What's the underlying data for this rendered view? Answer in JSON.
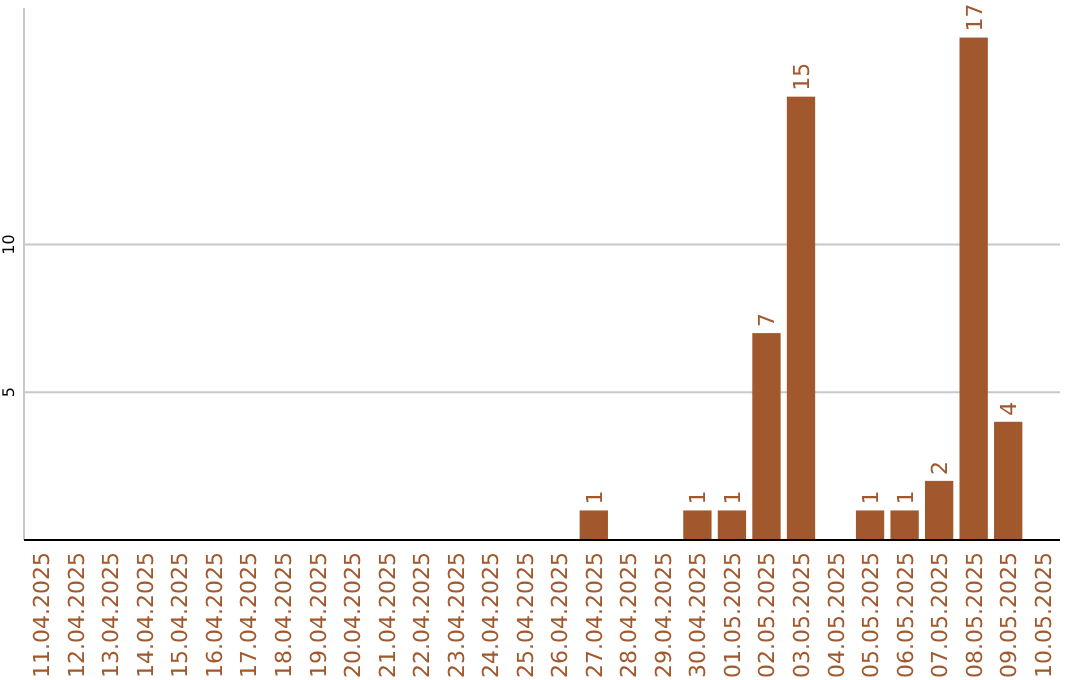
{
  "chart_data": {
    "type": "bar",
    "categories": [
      "11.04.2025",
      "12.04.2025",
      "13.04.2025",
      "14.04.2025",
      "15.04.2025",
      "16.04.2025",
      "17.04.2025",
      "18.04.2025",
      "19.04.2025",
      "20.04.2025",
      "21.04.2025",
      "22.04.2025",
      "23.04.2025",
      "24.04.2025",
      "25.04.2025",
      "26.04.2025",
      "27.04.2025",
      "28.04.2025",
      "29.04.2025",
      "30.04.2025",
      "01.05.2025",
      "02.05.2025",
      "03.05.2025",
      "04.05.2025",
      "05.05.2025",
      "06.05.2025",
      "07.05.2025",
      "08.05.2025",
      "09.05.2025",
      "10.05.2025"
    ],
    "values": [
      0,
      0,
      0,
      0,
      0,
      0,
      0,
      0,
      0,
      0,
      0,
      0,
      0,
      0,
      0,
      0,
      1,
      0,
      0,
      1,
      1,
      7,
      15,
      0,
      1,
      1,
      2,
      17,
      4,
      0
    ],
    "value_labels": [
      null,
      null,
      null,
      null,
      null,
      null,
      null,
      null,
      null,
      null,
      null,
      null,
      null,
      null,
      null,
      null,
      "1",
      null,
      null,
      "1",
      "1",
      "7",
      "15",
      null,
      "1",
      "1",
      "2",
      "17",
      "4",
      null
    ],
    "color": "#a0582c",
    "ylim": [
      0,
      18
    ],
    "yticks": [
      5,
      10
    ],
    "grid": "y"
  }
}
